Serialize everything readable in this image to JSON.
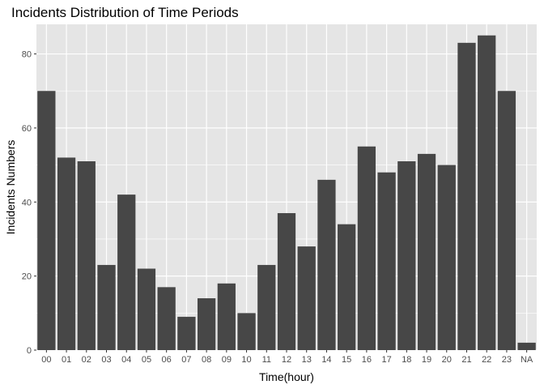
{
  "chart_data": {
    "type": "bar",
    "title": "Incidents Distribution of Time Periods",
    "xlabel": "Time(hour)",
    "ylabel": "Incidents Numbers",
    "categories": [
      "00",
      "01",
      "02",
      "03",
      "04",
      "05",
      "06",
      "07",
      "08",
      "09",
      "10",
      "11",
      "12",
      "13",
      "14",
      "15",
      "16",
      "17",
      "18",
      "19",
      "20",
      "21",
      "22",
      "23",
      "NA"
    ],
    "values": [
      70,
      52,
      51,
      23,
      42,
      22,
      17,
      9,
      14,
      18,
      10,
      23,
      37,
      28,
      46,
      34,
      55,
      48,
      51,
      53,
      50,
      83,
      85,
      70,
      2
    ],
    "ylim": [
      0,
      88
    ],
    "yticks": [
      0,
      20,
      40,
      60,
      80
    ],
    "grid": true,
    "legend": "none",
    "colors": {
      "panel": "#e5e5e5",
      "grid_major": "#ffffff",
      "bar": "#474747",
      "tick_text": "#4d4d4d",
      "tick_mark": "#333333"
    }
  }
}
